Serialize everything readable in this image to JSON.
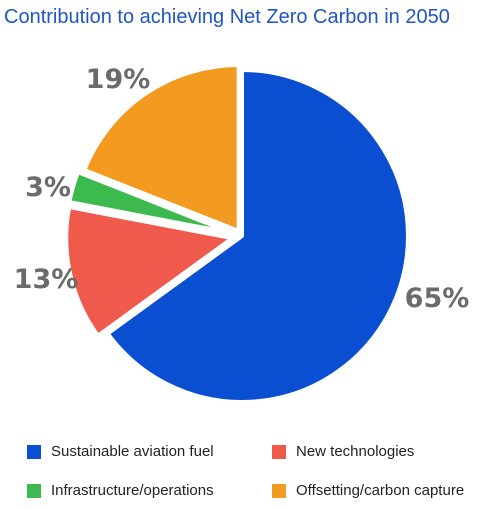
{
  "chart_data": {
    "type": "pie",
    "title": "Contribution to achieving Net Zero Carbon in 2050",
    "slices": [
      {
        "name": "Sustainable aviation fuel",
        "value": 65,
        "label": "65%",
        "color": "#0a4fd1"
      },
      {
        "name": "New technologies",
        "value": 13,
        "label": "13%",
        "color": "#ef5a4c"
      },
      {
        "name": "Infrastructure/operations",
        "value": 3,
        "label": "3%",
        "color": "#3dba4e"
      },
      {
        "name": "Offsetting/carbon capture",
        "value": 19,
        "label": "19%",
        "color": "#f39a21"
      }
    ],
    "legend_position": "bottom"
  }
}
